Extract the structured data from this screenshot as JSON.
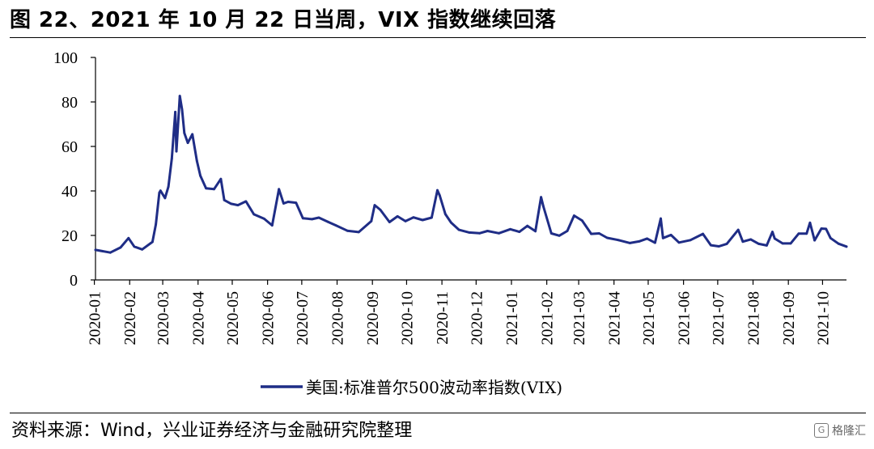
{
  "header": {
    "title": "图 22、2021 年 10 月 22 日当周，VIX 指数继续回落"
  },
  "footer": {
    "source": "资料来源：Wind，兴业证券经济与金融研究院整理",
    "watermark": "格隆汇"
  },
  "chart_data": {
    "type": "line",
    "title": "",
    "xlabel": "",
    "ylabel": "",
    "ylim": [
      0,
      100
    ],
    "yticks": [
      0,
      20,
      40,
      60,
      80,
      100
    ],
    "xticks": [
      "2020-01",
      "2020-02",
      "2020-03",
      "2020-04",
      "2020-05",
      "2020-06",
      "2020-07",
      "2020-08",
      "2020-09",
      "2020-10",
      "2020-11",
      "2020-12",
      "2021-01",
      "2021-02",
      "2021-03",
      "2021-04",
      "2021-05",
      "2021-06",
      "2021-07",
      "2021-08",
      "2021-09",
      "2021-10"
    ],
    "legend_position": "bottom",
    "grid": false,
    "line_color": "#1f2d86",
    "series": [
      {
        "name": "美国:标准普尔500波动率指数(VIX)",
        "x": [
          "2020-01-02",
          "2020-01-15",
          "2020-01-24",
          "2020-01-31",
          "2020-02-05",
          "2020-02-12",
          "2020-02-21",
          "2020-02-24",
          "2020-02-27",
          "2020-02-28",
          "2020-03-03",
          "2020-03-06",
          "2020-03-09",
          "2020-03-12",
          "2020-03-13",
          "2020-03-16",
          "2020-03-18",
          "2020-03-20",
          "2020-03-23",
          "2020-03-27",
          "2020-03-31",
          "2020-04-03",
          "2020-04-08",
          "2020-04-15",
          "2020-04-21",
          "2020-04-24",
          "2020-04-30",
          "2020-05-06",
          "2020-05-13",
          "2020-05-20",
          "2020-05-29",
          "2020-06-05",
          "2020-06-11",
          "2020-06-15",
          "2020-06-19",
          "2020-06-26",
          "2020-07-02",
          "2020-07-10",
          "2020-07-16",
          "2020-07-24",
          "2020-07-31",
          "2020-08-10",
          "2020-08-20",
          "2020-08-31",
          "2020-09-03",
          "2020-09-08",
          "2020-09-16",
          "2020-09-23",
          "2020-09-30",
          "2020-10-07",
          "2020-10-15",
          "2020-10-23",
          "2020-10-28",
          "2020-10-30",
          "2020-11-04",
          "2020-11-09",
          "2020-11-16",
          "2020-11-25",
          "2020-12-04",
          "2020-12-11",
          "2020-12-21",
          "2020-12-31",
          "2021-01-08",
          "2021-01-15",
          "2021-01-22",
          "2021-01-27",
          "2021-01-29",
          "2021-02-05",
          "2021-02-12",
          "2021-02-19",
          "2021-02-25",
          "2021-03-04",
          "2021-03-12",
          "2021-03-19",
          "2021-03-26",
          "2021-04-05",
          "2021-04-15",
          "2021-04-23",
          "2021-04-30",
          "2021-05-07",
          "2021-05-12",
          "2021-05-14",
          "2021-05-21",
          "2021-05-28",
          "2021-06-07",
          "2021-06-18",
          "2021-06-25",
          "2021-07-02",
          "2021-07-09",
          "2021-07-19",
          "2021-07-23",
          "2021-07-30",
          "2021-08-06",
          "2021-08-13",
          "2021-08-18",
          "2021-08-20",
          "2021-08-27",
          "2021-09-03",
          "2021-09-10",
          "2021-09-17",
          "2021-09-20",
          "2021-09-24",
          "2021-09-30",
          "2021-10-04",
          "2021-10-08",
          "2021-10-15",
          "2021-10-22"
        ],
        "y": [
          13.5,
          12.3,
          14.6,
          18.8,
          15.0,
          13.7,
          17.1,
          25.0,
          39.2,
          40.1,
          36.8,
          41.9,
          54.5,
          75.5,
          57.8,
          82.7,
          76.5,
          66.0,
          61.6,
          65.5,
          53.5,
          46.8,
          41.2,
          40.8,
          45.4,
          35.9,
          34.2,
          33.6,
          35.3,
          29.5,
          27.5,
          24.5,
          40.8,
          34.4,
          35.1,
          34.7,
          27.7,
          27.3,
          28.0,
          26.1,
          24.5,
          22.1,
          21.5,
          26.4,
          33.6,
          31.5,
          26.0,
          28.6,
          26.4,
          28.1,
          26.9,
          28.0,
          40.3,
          38.0,
          29.6,
          25.8,
          22.5,
          21.3,
          21.0,
          22.0,
          21.0,
          22.8,
          21.6,
          24.3,
          21.9,
          37.2,
          33.1,
          20.9,
          19.9,
          22.0,
          28.9,
          26.7,
          20.7,
          20.9,
          18.9,
          17.9,
          16.6,
          17.3,
          18.6,
          16.7,
          27.6,
          18.8,
          20.2,
          16.8,
          17.9,
          20.7,
          15.6,
          15.1,
          16.2,
          22.5,
          17.2,
          18.2,
          16.2,
          15.5,
          21.6,
          18.6,
          16.4,
          16.4,
          20.8,
          20.8,
          25.7,
          17.8,
          23.1,
          22.96,
          18.8,
          16.3,
          15.0
        ]
      }
    ]
  }
}
